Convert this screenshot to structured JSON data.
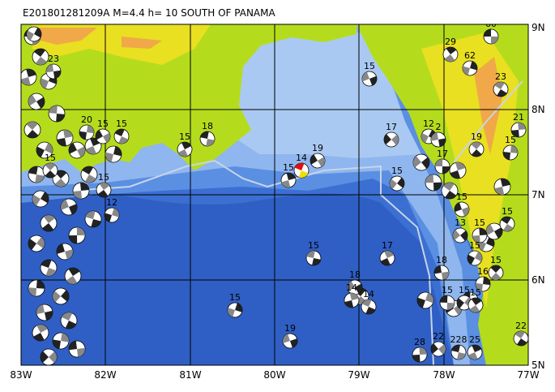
{
  "header": {
    "title": "E201801281209A  M=4.4  h= 10  SOUTH OF PANAMA"
  },
  "axes": {
    "x_labels": [
      "83W",
      "82W",
      "81W",
      "80W",
      "79W",
      "78W",
      "77W"
    ],
    "y_labels": [
      "9N",
      "8N",
      "7N",
      "6N",
      "5N"
    ]
  },
  "events": [
    {
      "label": "60"
    },
    {
      "label": "29"
    },
    {
      "label": "62"
    },
    {
      "label": "15"
    },
    {
      "label": "23"
    },
    {
      "label": "21"
    },
    {
      "label": "17"
    },
    {
      "label": "18"
    },
    {
      "label": "15"
    },
    {
      "label": "12"
    },
    {
      "label": "2"
    },
    {
      "label": "19"
    },
    {
      "label": "15"
    },
    {
      "label": "19"
    },
    {
      "label": "14"
    },
    {
      "label": "15"
    },
    {
      "label": "15"
    },
    {
      "label": "17"
    },
    {
      "label": "15"
    },
    {
      "label": "12"
    },
    {
      "label": "15"
    },
    {
      "label": "15"
    },
    {
      "label": "15"
    },
    {
      "label": "13"
    },
    {
      "label": "15"
    },
    {
      "label": "17"
    },
    {
      "label": "15"
    },
    {
      "label": "18"
    },
    {
      "label": "15"
    },
    {
      "label": "16"
    },
    {
      "label": "18"
    },
    {
      "label": "14"
    },
    {
      "label": "14"
    },
    {
      "label": "15"
    },
    {
      "label": "15"
    },
    {
      "label": "15"
    },
    {
      "label": "15"
    },
    {
      "label": "19"
    },
    {
      "label": "22"
    },
    {
      "label": "28"
    },
    {
      "label": "22"
    },
    {
      "label": "228"
    },
    {
      "label": "25"
    },
    {
      "label": "22"
    },
    {
      "label": "23"
    },
    {
      "label": "15"
    },
    {
      "label": "20"
    },
    {
      "label": "15"
    },
    {
      "label": "15"
    }
  ]
}
